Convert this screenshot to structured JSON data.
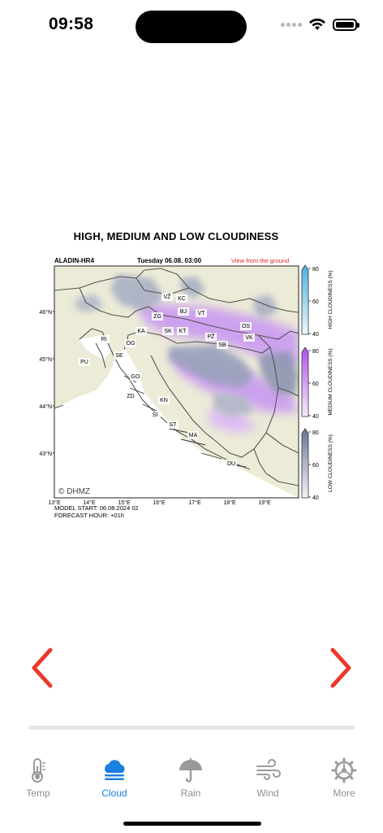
{
  "status_bar": {
    "time": "09:58"
  },
  "chart": {
    "title": "HIGH, MEDIUM AND LOW CLOUDINESS",
    "model": "ALADIN-HR4",
    "valid_time": "Tuesday 06.08. 03:00",
    "view_label": "View from the ground",
    "copyright": "© DHMZ",
    "model_start": "MODEL START: 06.08.2024 02",
    "forecast_hour": "FORECAST HOUR: +01h",
    "lon_ticks": [
      "13°E",
      "14°E",
      "15°E",
      "16°E",
      "17°E",
      "18°E",
      "19°E"
    ],
    "lat_ticks": [
      "46°N",
      "45°N",
      "44°N",
      "43°N"
    ],
    "places": [
      "VŽ",
      "KC",
      "BJ",
      "VT",
      "ZG",
      "KA",
      "SK",
      "KT",
      "OS",
      "PŽ",
      "VK",
      "SB",
      "RI",
      "OG",
      "SE",
      "PU",
      "GO",
      "ZD",
      "KN",
      "ŠI",
      "ST",
      "MA",
      "DU"
    ],
    "colorbars": [
      {
        "label": "HIGH CLOUDINESS (%)",
        "ticks": [
          "80",
          "60",
          "40"
        ],
        "color": "#5bb7df"
      },
      {
        "label": "MEDIUM CLOUDINESS (%)",
        "ticks": [
          "80",
          "60",
          "40"
        ],
        "color": "#c070ec"
      },
      {
        "label": "LOW CLOUDINESS (%)",
        "ticks": [
          "80",
          "60",
          "40"
        ],
        "color": "#7880a0"
      }
    ]
  },
  "tabs": [
    {
      "label": "Temp",
      "icon": "thermometer-icon",
      "active": false
    },
    {
      "label": "Cloud",
      "icon": "cloud-icon",
      "active": true
    },
    {
      "label": "Rain",
      "icon": "umbrella-icon",
      "active": false
    },
    {
      "label": "Wind",
      "icon": "wind-icon",
      "active": false
    },
    {
      "label": "More",
      "icon": "gear-icon",
      "active": false
    }
  ],
  "colors": {
    "accent": "#1a7fe0",
    "arrow": "#e8392c",
    "inactive": "#8e8e93"
  }
}
